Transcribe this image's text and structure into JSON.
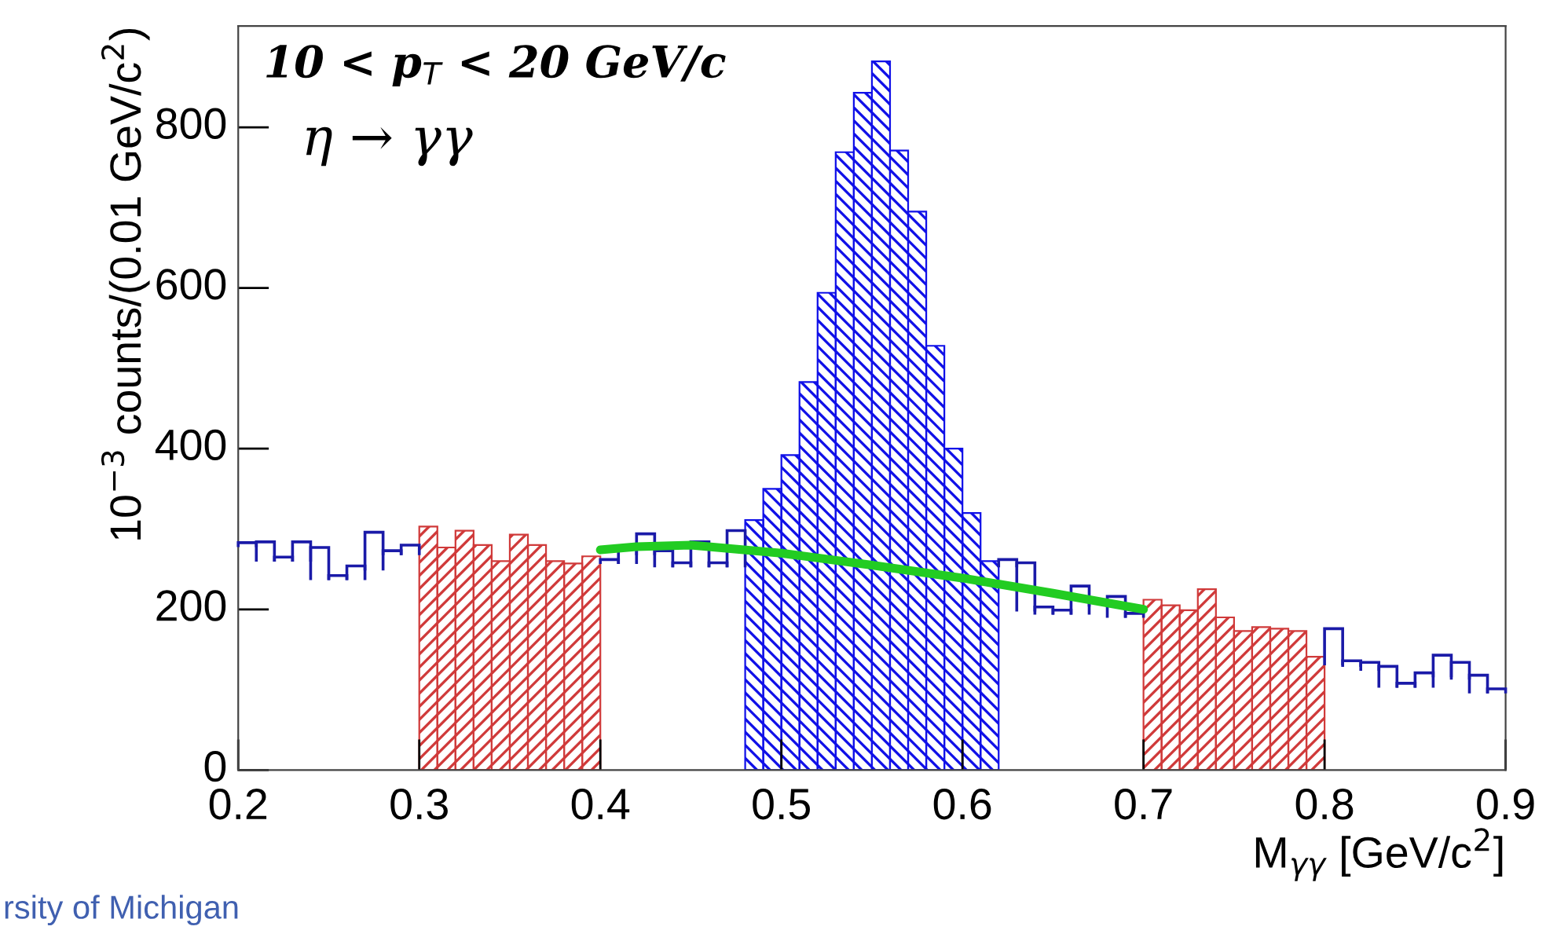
{
  "chart_data": {
    "type": "histogram",
    "xlabel": "M$_{γγ}$ [GeV/c$^{2}$]",
    "ylabel": "10$^{−3}$ counts/(0.01 GeV/c$^{2}$)",
    "annotations": [
      "10 < p$_{T}$ < 20 GeV/c",
      "η → γγ",
      "rsity of Michigan"
    ],
    "bins": [
      0.2,
      0.21,
      0.22,
      0.23,
      0.24,
      0.25,
      0.26,
      0.27,
      0.28,
      0.29,
      0.3,
      0.31,
      0.32,
      0.33,
      0.34,
      0.35,
      0.36,
      0.37,
      0.38,
      0.39,
      0.4,
      0.41,
      0.42,
      0.43,
      0.44,
      0.45,
      0.46,
      0.47,
      0.48,
      0.49,
      0.5,
      0.51,
      0.52,
      0.53,
      0.54,
      0.55,
      0.56,
      0.57,
      0.58,
      0.59,
      0.6,
      0.61,
      0.62,
      0.63,
      0.64,
      0.65,
      0.66,
      0.67,
      0.68,
      0.69,
      0.7,
      0.71,
      0.72,
      0.73,
      0.74,
      0.75,
      0.76,
      0.77,
      0.78,
      0.79,
      0.8,
      0.81,
      0.82,
      0.83,
      0.84,
      0.85,
      0.86,
      0.87,
      0.88,
      0.89,
      0.9
    ],
    "series": [
      {
        "color": "#1a1aa8",
        "values": [
          283,
          284,
          265,
          284,
          277,
          242,
          254,
          296,
          273,
          280,
          303,
          277,
          298,
          280,
          260,
          293,
          280,
          260,
          257,
          266,
          262,
          278,
          294,
          273,
          258,
          284,
          258,
          298,
          311,
          350,
          392,
          483,
          594,
          769,
          843,
          882,
          771,
          695,
          528,
          400,
          320,
          260,
          262,
          258,
          203,
          199,
          229,
          209,
          216,
          195,
          212,
          205,
          199,
          225,
          190,
          173,
          178,
          176,
          173,
          141,
          176,
          136,
          134,
          129,
          108,
          121,
          143,
          134,
          118,
          101
        ],
        "colors": [
          "#1a1aa8",
          "#1a1aa8",
          "#1a1aa8",
          "#1a1aa8",
          "#1a1aa8",
          "#1a1aa8",
          "#1a1aa8",
          "#1a1aa8",
          "#1a1aa8",
          "#1a1aa8",
          "#d03a3a",
          "#d03a3a",
          "#d03a3a",
          "#d03a3a",
          "#d03a3a",
          "#d03a3a",
          "#d03a3a",
          "#d03a3a",
          "#d03a3a",
          "#d03a3a",
          "#1a1aa8",
          "#1a1aa8",
          "#1a1aa8",
          "#1a1aa8",
          "#1a1aa8",
          "#1a1aa8",
          "#1a1aa8",
          "#1a1aa8",
          "#1010e8",
          "#1010e8",
          "#1010e8",
          "#1010e8",
          "#1010e8",
          "#1010e8",
          "#1010e8",
          "#1010e8",
          "#1010e8",
          "#1010e8",
          "#1010e8",
          "#1010e8",
          "#1010e8",
          "#1010e8",
          "#1a1aa8",
          "#1a1aa8",
          "#1a1aa8",
          "#1a1aa8",
          "#1a1aa8",
          "#1a1aa8",
          "#1a1aa8",
          "#1a1aa8",
          "#d03a3a",
          "#d03a3a",
          "#d03a3a",
          "#d03a3a",
          "#d03a3a",
          "#d03a3a",
          "#d03a3a",
          "#d03a3a",
          "#d03a3a",
          "#d03a3a",
          "#1a1aa8",
          "#1a1aa8",
          "#1a1aa8",
          "#1a1aa8",
          "#1a1aa8",
          "#1a1aa8",
          "#1a1aa8",
          "#1a1aa8",
          "#1a1aa8",
          "#1a1aa8"
        ]
      },
      {
        "type": "line",
        "color": "#22cc22",
        "x": [
          0.4,
          0.42,
          0.45,
          0.5,
          0.55,
          0.6,
          0.65,
          0.7
        ],
        "values": [
          274,
          278,
          280,
          270,
          255,
          239,
          220,
          200
        ]
      }
    ],
    "xlim": [
      0.2,
      0.9
    ],
    "ylim": [
      0,
      926
    ],
    "xticks": [
      {
        "value": 0.2,
        "label": "0.2"
      },
      {
        "value": 0.3,
        "label": "0.3"
      },
      {
        "value": 0.4,
        "label": "0.4"
      },
      {
        "value": 0.5,
        "label": "0.5"
      },
      {
        "value": 0.6,
        "label": "0.6"
      },
      {
        "value": 0.7,
        "label": "0.7"
      },
      {
        "value": 0.8,
        "label": "0.8"
      },
      {
        "value": 0.9,
        "label": "0.9"
      }
    ],
    "yticks": [
      0,
      200,
      400,
      600,
      800
    ],
    "grid": false,
    "legend": false
  }
}
